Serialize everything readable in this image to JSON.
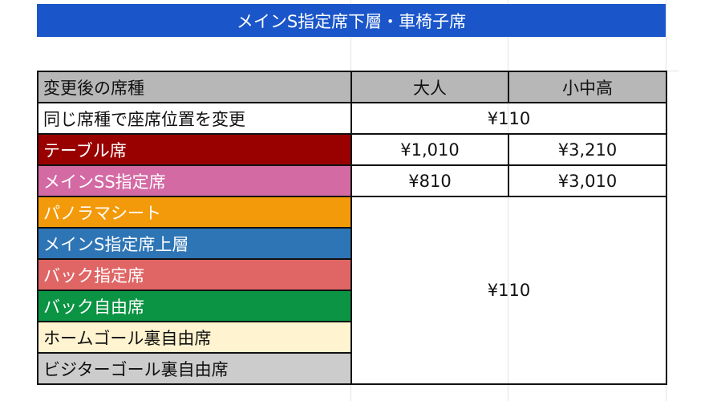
{
  "title": "メインS指定席下層・車椅子席",
  "header": {
    "seat_type": "変更後の席種",
    "adult": "大人",
    "child": "小中高"
  },
  "same_type_row": {
    "label": "同じ席種で座席位置を変更",
    "price": "¥110"
  },
  "rows": [
    {
      "label": "テーブル席",
      "adult": "¥1,010",
      "child": "¥3,210",
      "color": "#990000",
      "text_color": "#ffffff"
    },
    {
      "label": "メインSS指定席",
      "adult": "¥810",
      "child": "¥3,010",
      "color": "#d36aa4",
      "text_color": "#ffffff"
    },
    {
      "label": "パノラマシート",
      "color": "#f39a0a",
      "text_color": "#ffffff"
    },
    {
      "label": "メインS指定席上層",
      "color": "#2e75b6",
      "text_color": "#ffffff"
    },
    {
      "label": "バック指定席",
      "color": "#e06666",
      "text_color": "#ffffff"
    },
    {
      "label": "バック自由席",
      "color": "#0b9444",
      "text_color": "#ffffff"
    },
    {
      "label": "ホームゴール裏自由席",
      "color": "#fff4cf",
      "text_color": "#111111"
    },
    {
      "label": "ビジターゴール裏自由席",
      "color": "#cccccc",
      "text_color": "#111111"
    }
  ],
  "merged_price": "¥110",
  "colors": {
    "title_bg": "#1a56c9",
    "header_bg": "#b7b7b7"
  }
}
